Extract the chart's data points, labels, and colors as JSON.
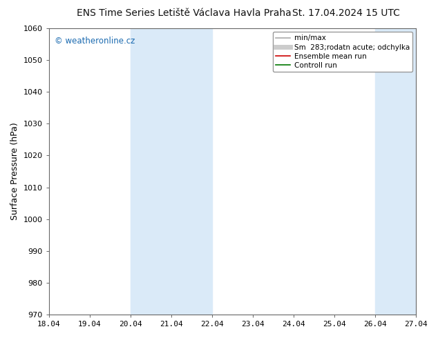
{
  "title_left": "ENS Time Series Letiště Václava Havla Praha",
  "title_right": "St. 17.04.2024 15 UTC",
  "ylabel": "Surface Pressure (hPa)",
  "ylim": [
    970,
    1060
  ],
  "yticks": [
    970,
    980,
    990,
    1000,
    1010,
    1020,
    1030,
    1040,
    1050,
    1060
  ],
  "xtick_labels": [
    "18.04",
    "19.04",
    "20.04",
    "21.04",
    "22.04",
    "23.04",
    "24.04",
    "25.04",
    "26.04",
    "27.04"
  ],
  "shaded_bands": [
    {
      "xstart": 2,
      "xend": 4,
      "color": "#daeaf8"
    },
    {
      "xstart": 8,
      "xend": 9,
      "color": "#daeaf8"
    }
  ],
  "legend_labels": [
    "min/max",
    "Sm  283;rodatn acute; odchylka",
    "Ensemble mean run",
    "Controll run"
  ],
  "legend_colors": [
    "#aaaaaa",
    "#cccccc",
    "#cc0000",
    "#007700"
  ],
  "watermark": "© weatheronline.cz",
  "watermark_color": "#1a6ab0",
  "background_color": "#ffffff",
  "plot_bg_color": "#ffffff",
  "tick_color": "#444444",
  "spine_color": "#666666",
  "title_fontsize": 10,
  "axis_label_fontsize": 9,
  "tick_fontsize": 8,
  "legend_fontsize": 7.5
}
